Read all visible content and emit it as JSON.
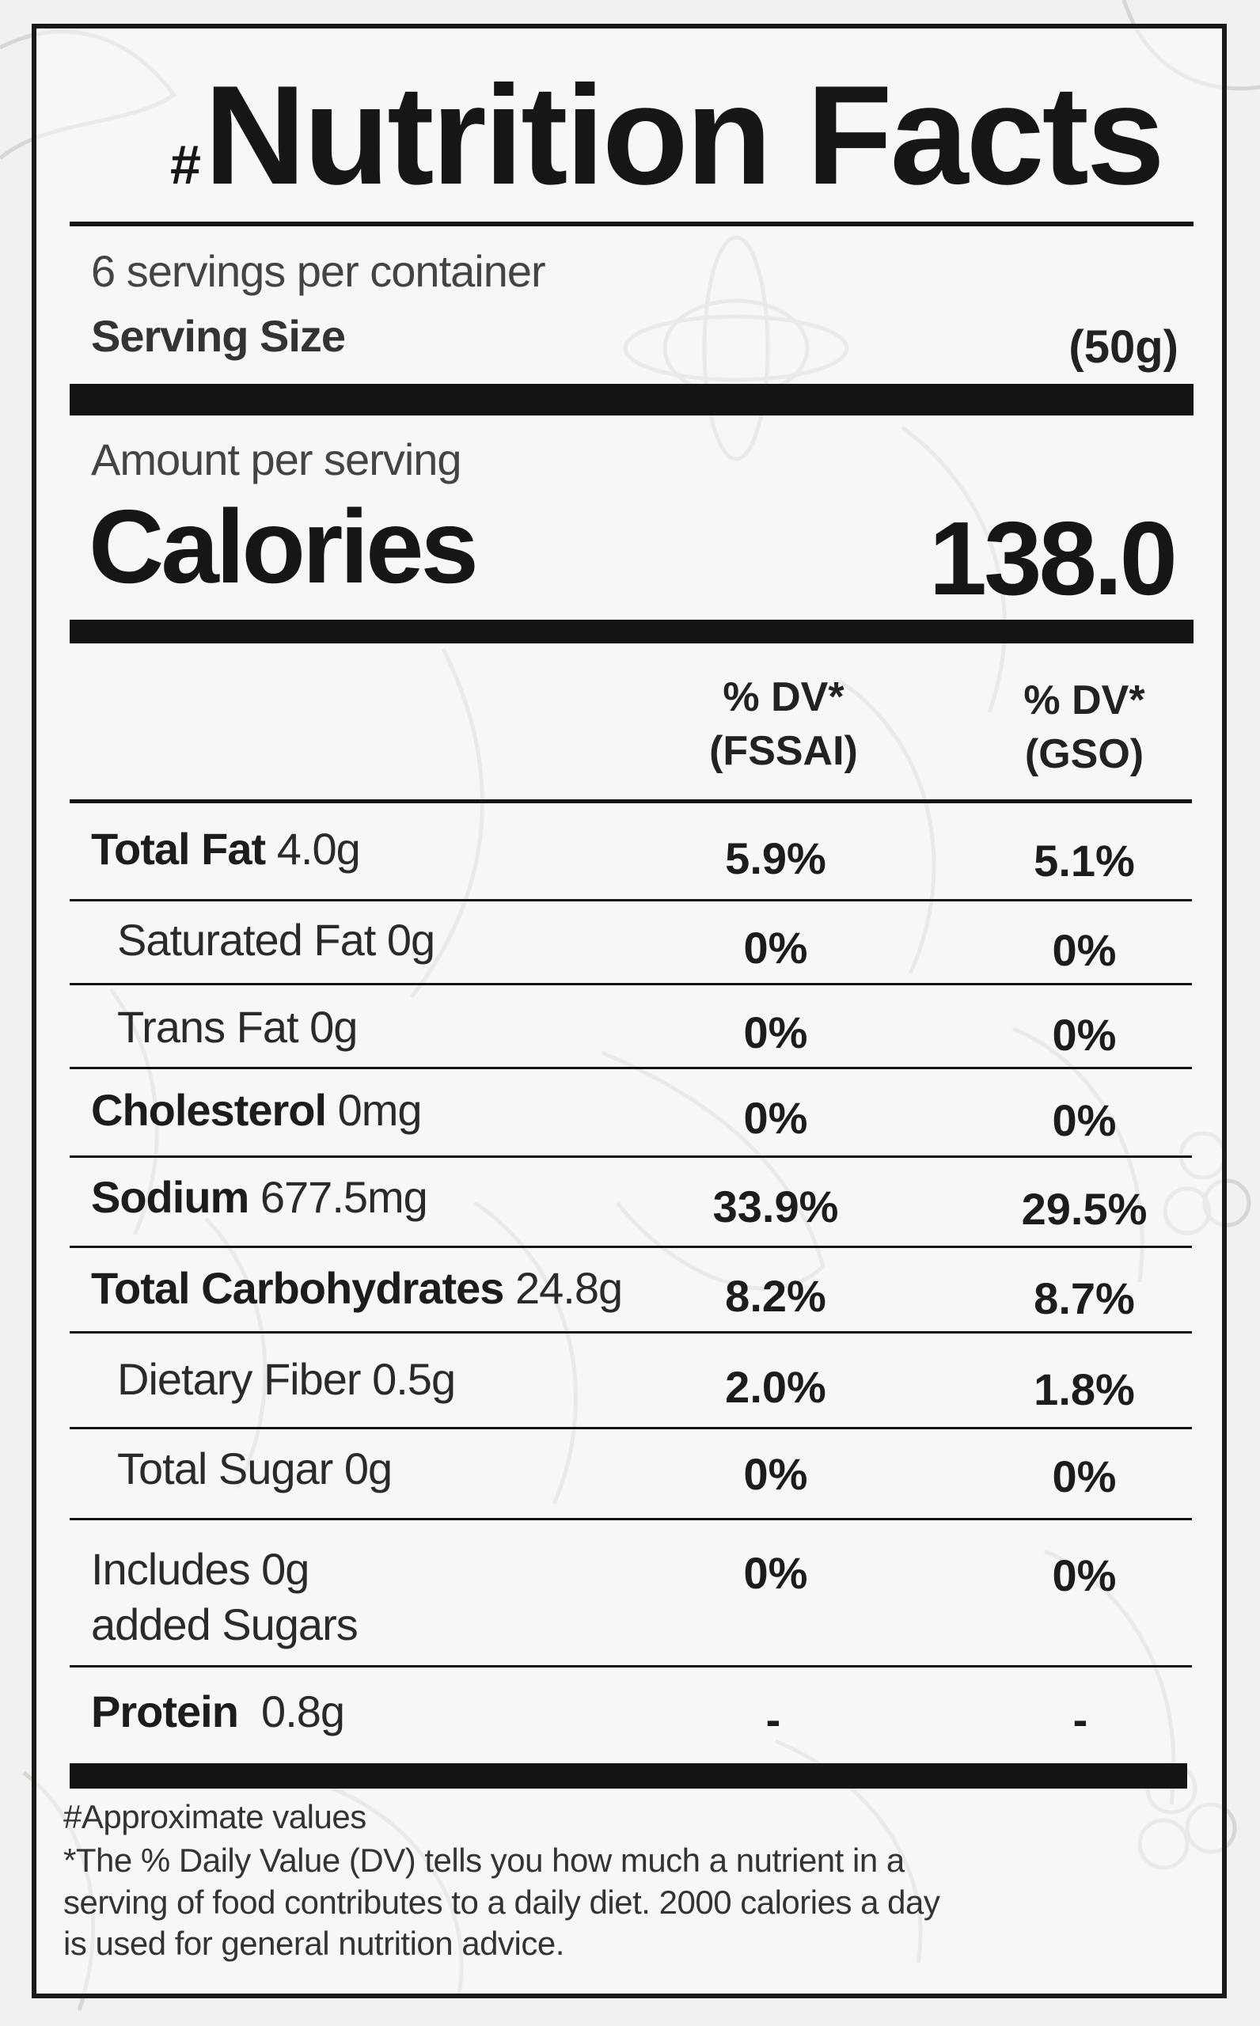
{
  "title": {
    "hash": "#",
    "text": "Nutrition Facts"
  },
  "servings_per_container": "6 servings per container",
  "serving_size": {
    "label": "Serving Size",
    "value": "(50g)"
  },
  "amount_per_serving": "Amount per serving",
  "calories": {
    "label": "Calories",
    "value": "138.0"
  },
  "columns": [
    {
      "line1": "% DV*",
      "line2": "(FSSAI)"
    },
    {
      "line1": "% DV*",
      "line2": "(GSO)"
    }
  ],
  "rows": [
    {
      "name": "Total Fat",
      "amount": "4.0g",
      "bold": true,
      "dv_fssai": "5.9%",
      "dv_gso": "5.1%"
    },
    {
      "name": "Saturated Fat",
      "amount": "0g",
      "bold": false,
      "dv_fssai": "0%",
      "dv_gso": "0%"
    },
    {
      "name": "Trans Fat",
      "amount": "0g",
      "bold": false,
      "dv_fssai": "0%",
      "dv_gso": "0%"
    },
    {
      "name": "Cholesterol",
      "amount": "0mg",
      "bold": true,
      "dv_fssai": "0%",
      "dv_gso": "0%"
    },
    {
      "name": "Sodium",
      "amount": "677.5mg",
      "bold": true,
      "dv_fssai": "33.9%",
      "dv_gso": "29.5%"
    },
    {
      "name": "Total Carbohydrates",
      "amount": "24.8g",
      "bold": true,
      "dv_fssai": "8.2%",
      "dv_gso": "8.7%"
    },
    {
      "name": "Dietary Fiber",
      "amount": "0.5g",
      "bold": false,
      "dv_fssai": "2.0%",
      "dv_gso": "1.8%"
    },
    {
      "name": "Total Sugar",
      "amount": "0g",
      "bold": false,
      "dv_fssai": "0%",
      "dv_gso": "0%"
    },
    {
      "name": "Includes 0g",
      "amount": "added Sugars",
      "bold": false,
      "dv_fssai": "0%",
      "dv_gso": "0%"
    },
    {
      "name": "Protein",
      "amount": "0.8g",
      "bold": true,
      "dv_fssai": "-",
      "dv_gso": "-"
    }
  ],
  "footnotes": {
    "approx": "#Approximate values",
    "dv_line1": "*The % Daily Value (DV) tells you how much a nutrient in a",
    "dv_line2": "serving of food contributes to a daily diet. 2000 calories a day",
    "dv_line3": "is used for general nutrition advice."
  }
}
